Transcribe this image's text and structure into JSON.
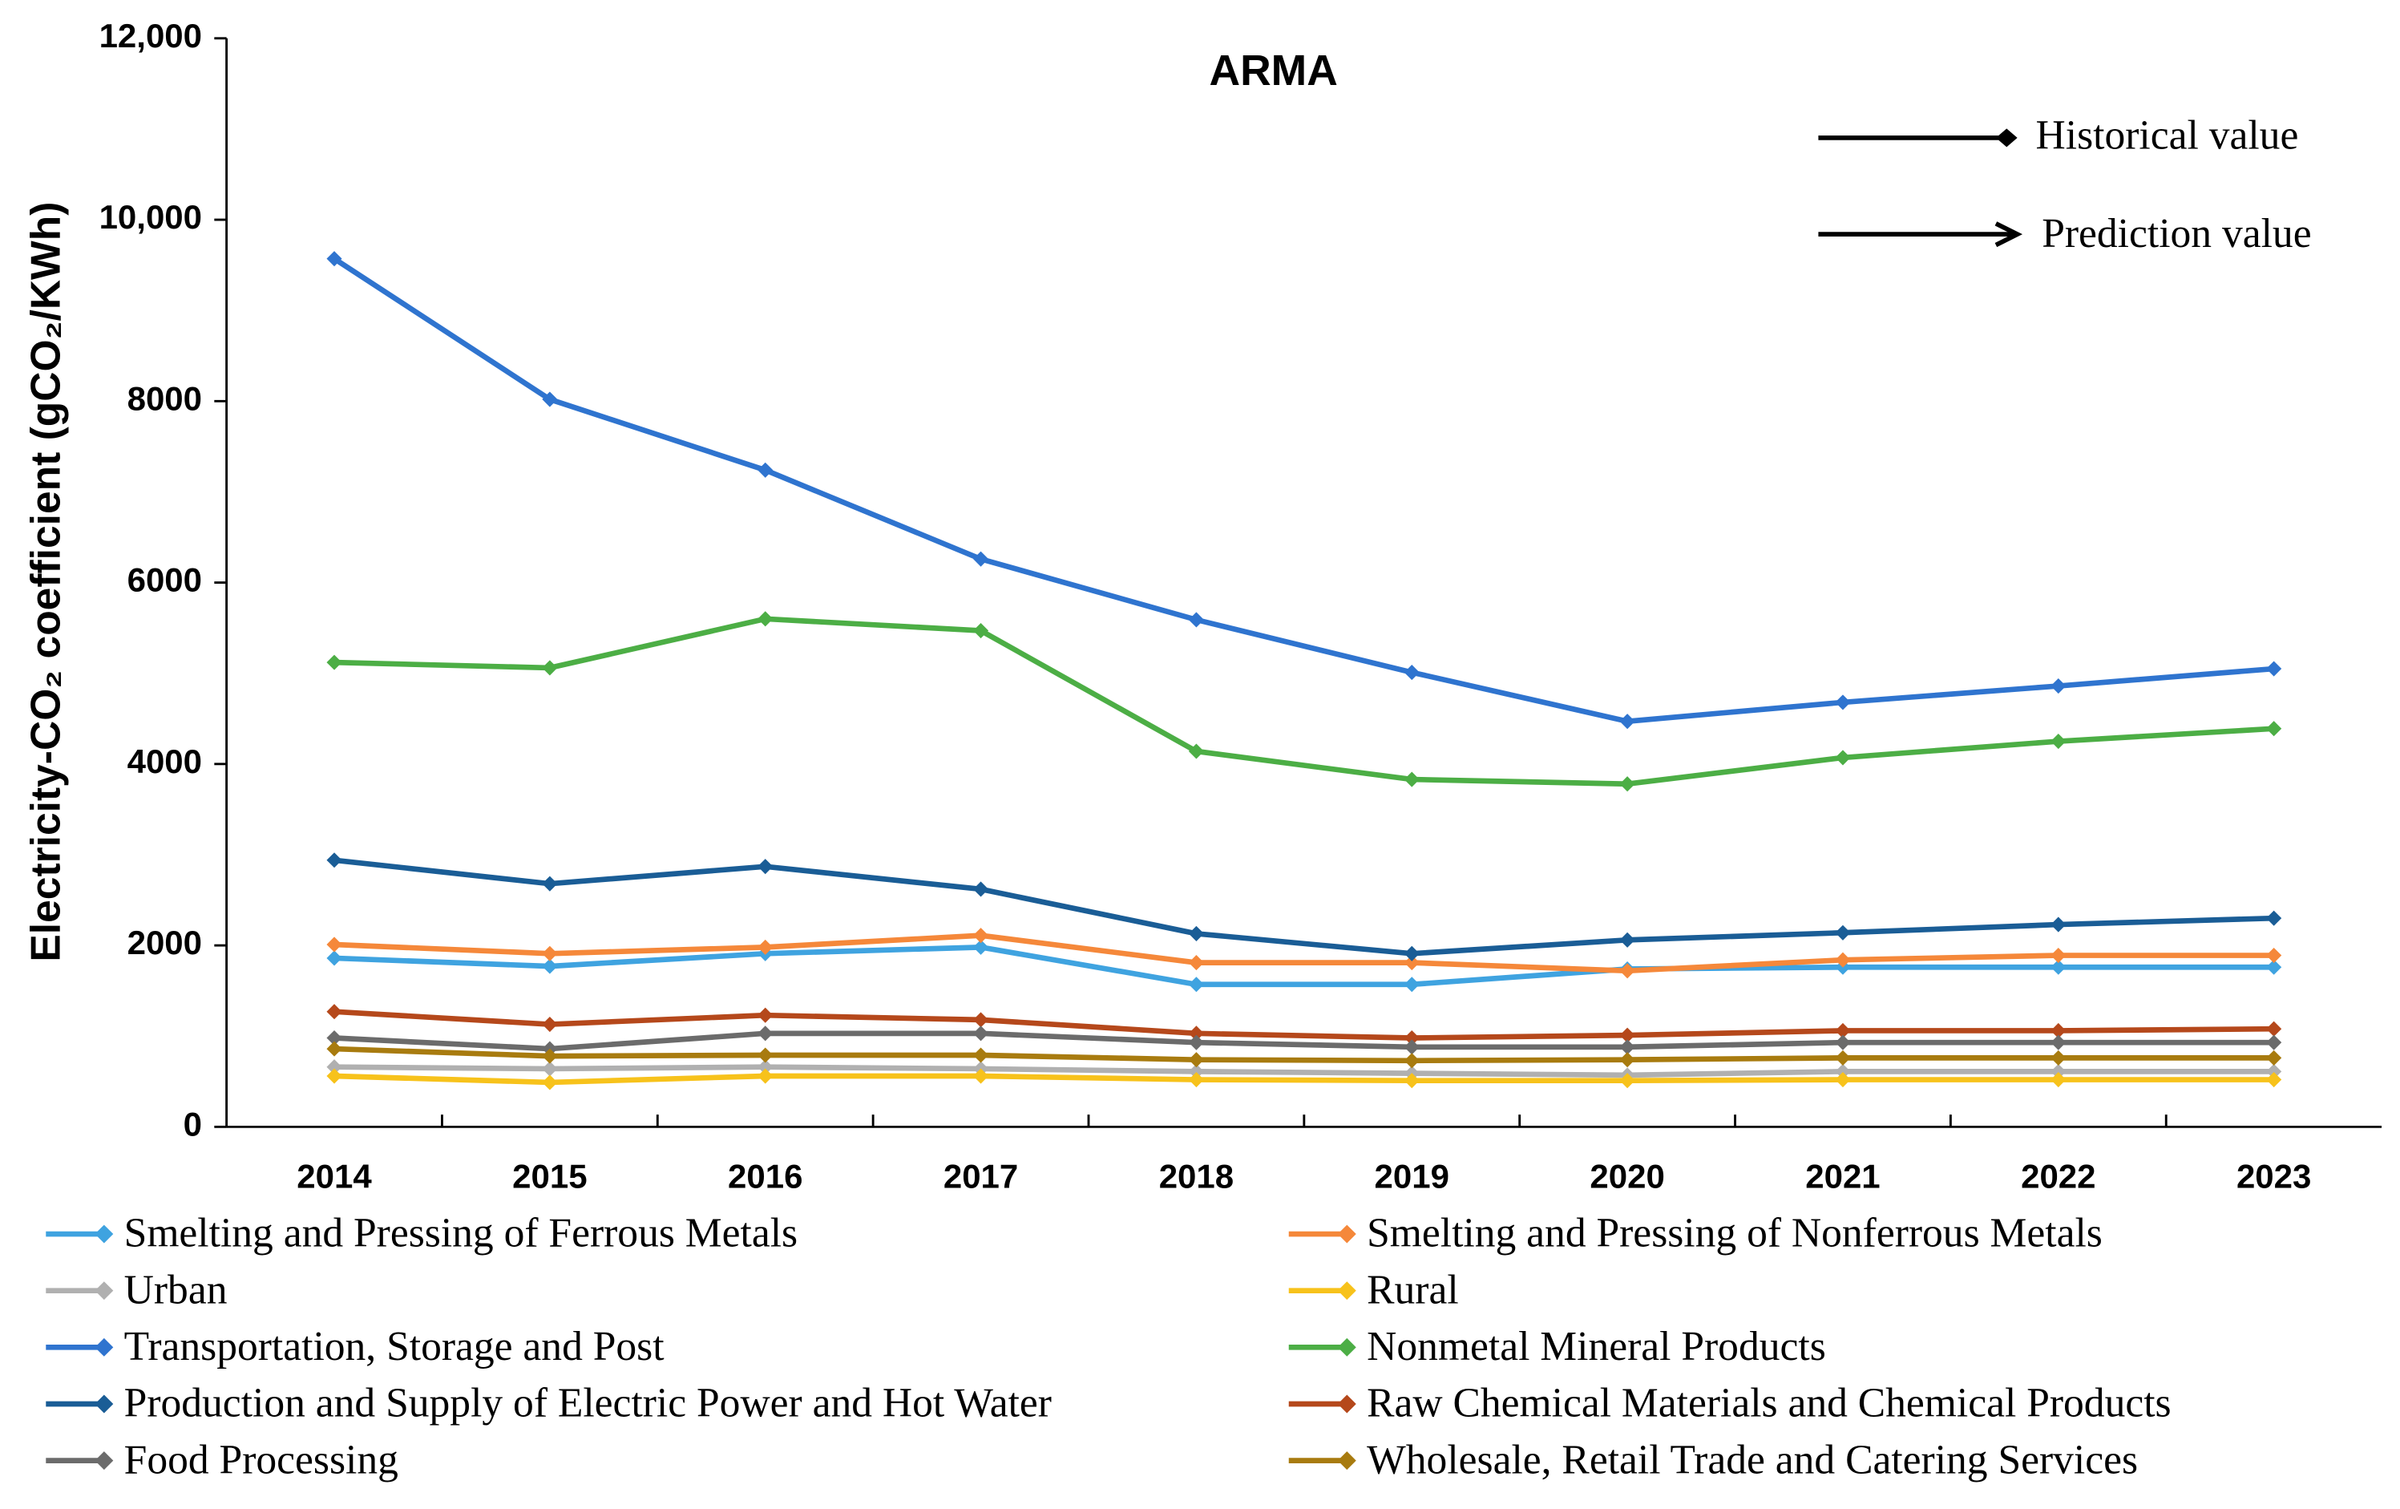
{
  "chart_data": {
    "type": "line",
    "title": "ARMA",
    "y_label": "Electricity-CO₂ coefficient (gCO₂/KWh)",
    "annotations": [
      "Historical value",
      "Prediction value"
    ],
    "categories": [
      "2014",
      "2015",
      "2016",
      "2017",
      "2018",
      "2019",
      "2020",
      "2021",
      "2022",
      "2023"
    ],
    "ylim": [
      0,
      12000
    ],
    "yticks": [
      0,
      2000,
      4000,
      6000,
      8000,
      {
        "value": 10000,
        "label": "10,000"
      },
      {
        "value": 12000,
        "label": "12,000"
      }
    ],
    "series": [
      {
        "name": "Smelting and Pressing of Ferrous Metals",
        "color": "#3fa3e0",
        "values": [
          1860,
          1770,
          1910,
          1980,
          1570,
          1570,
          1740,
          1760,
          1760,
          1760
        ]
      },
      {
        "name": "Smelting and Pressing of Nonferrous Metals",
        "color": "#f5883a",
        "values": [
          2010,
          1910,
          1980,
          2110,
          1810,
          1810,
          1720,
          1840,
          1890,
          1890
        ]
      },
      {
        "name": "Urban",
        "color": "#b0b0b0",
        "values": [
          660,
          640,
          660,
          640,
          610,
          590,
          570,
          610,
          610,
          610
        ]
      },
      {
        "name": "Rural",
        "color": "#f7c21b",
        "values": [
          560,
          490,
          560,
          560,
          520,
          510,
          510,
          520,
          520,
          520
        ]
      },
      {
        "name": "Transportation, Storage and Post",
        "color": "#2f74cf",
        "values": [
          9570,
          8020,
          7240,
          6260,
          5590,
          5010,
          4470,
          4680,
          4860,
          5050
        ]
      },
      {
        "name": "Nonmetal Mineral Products",
        "color": "#4cae45",
        "values": [
          5120,
          5060,
          5600,
          5470,
          4140,
          3830,
          3780,
          4070,
          4250,
          4390
        ]
      },
      {
        "name": "Production and Supply of Electric Power and Hot Water",
        "color": "#1a5d96",
        "values": [
          2940,
          2680,
          2870,
          2620,
          2130,
          1910,
          2060,
          2140,
          2230,
          2300
        ]
      },
      {
        "name": "Raw Chemical Materials and Chemical Products",
        "color": "#b5481b",
        "values": [
          1270,
          1130,
          1230,
          1180,
          1030,
          980,
          1010,
          1060,
          1060,
          1080
        ]
      },
      {
        "name": "Food Processing",
        "color": "#6b6b6b",
        "values": [
          980,
          860,
          1030,
          1030,
          930,
          880,
          880,
          930,
          930,
          930
        ]
      },
      {
        "name": "Wholesale, Retail Trade and Catering Services",
        "color": "#a87b0f",
        "values": [
          860,
          780,
          790,
          790,
          740,
          730,
          740,
          760,
          760,
          760
        ]
      }
    ]
  }
}
